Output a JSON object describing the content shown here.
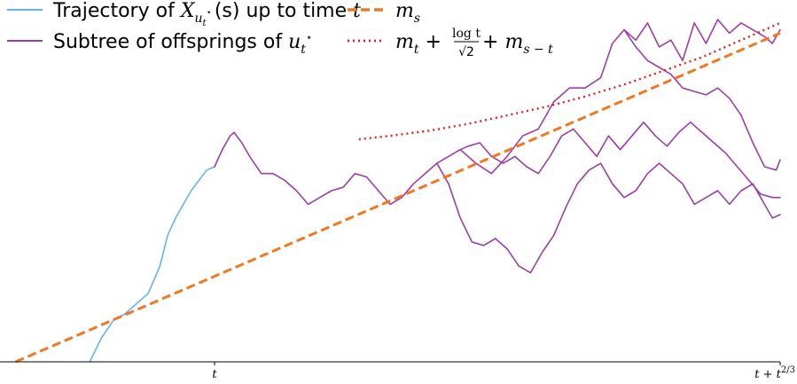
{
  "chart_data": {
    "type": "line",
    "title": "",
    "xlabel": "",
    "ylabel": "",
    "grid": false,
    "legend_placement": "top",
    "xlim": [
      0,
      1
    ],
    "ylim": [
      0,
      1
    ],
    "x_ticks": [
      {
        "key": "t",
        "value": 0.275,
        "label": "t"
      },
      {
        "key": "t_end",
        "value": 1.0,
        "label": "t + t^{2/3}"
      }
    ],
    "legend": [
      {
        "key": "trajectory",
        "label_parts": [
          "Trajectory of ",
          "X",
          "u",
          "t",
          "⋆",
          "(s)",
          " up to time ",
          "t"
        ],
        "color": "#66b2f0",
        "style": "solid"
      },
      {
        "key": "subtree",
        "label_parts": [
          "Subtree of offsprings of ",
          "u",
          "t",
          "⋆"
        ],
        "color": "#9b3ea8",
        "style": "solid"
      },
      {
        "key": "m_s",
        "label_parts": [
          "m",
          "s"
        ],
        "color": "#f07820",
        "style": "dashed"
      },
      {
        "key": "bound",
        "label_parts": [
          "m",
          "t",
          " + ",
          "log t",
          "√2",
          " + ",
          "m",
          "s − t"
        ],
        "color": "#e02020",
        "style": "dotted"
      }
    ],
    "colors": {
      "trajectory": "#66b2f0",
      "subtree": "#9b3ea8",
      "m_s": "#f07820",
      "bound": "#e02020"
    },
    "series": [
      {
        "key": "trajectory",
        "points": [
          [
            0.115,
            0.0
          ],
          [
            0.13,
            0.07
          ],
          [
            0.145,
            0.12
          ],
          [
            0.16,
            0.14
          ],
          [
            0.175,
            0.17
          ],
          [
            0.19,
            0.2
          ],
          [
            0.205,
            0.28
          ],
          [
            0.215,
            0.37
          ],
          [
            0.225,
            0.42
          ],
          [
            0.235,
            0.46
          ],
          [
            0.245,
            0.5
          ],
          [
            0.255,
            0.53
          ],
          [
            0.265,
            0.56
          ],
          [
            0.275,
            0.57
          ]
        ]
      },
      {
        "key": "trunk",
        "points": [
          [
            0.275,
            0.57
          ],
          [
            0.285,
            0.62
          ],
          [
            0.295,
            0.66
          ],
          [
            0.3,
            0.67
          ],
          [
            0.31,
            0.64
          ],
          [
            0.32,
            0.6
          ],
          [
            0.335,
            0.55
          ],
          [
            0.35,
            0.55
          ],
          [
            0.365,
            0.53
          ],
          [
            0.38,
            0.5
          ],
          [
            0.395,
            0.46
          ],
          [
            0.41,
            0.48
          ],
          [
            0.425,
            0.5
          ],
          [
            0.44,
            0.51
          ],
          [
            0.455,
            0.55
          ],
          [
            0.47,
            0.54
          ],
          [
            0.485,
            0.5
          ],
          [
            0.5,
            0.46
          ],
          [
            0.515,
            0.48
          ],
          [
            0.53,
            0.52
          ],
          [
            0.545,
            0.55
          ],
          [
            0.56,
            0.58
          ],
          [
            0.575,
            0.6
          ],
          [
            0.59,
            0.62
          ]
        ]
      },
      {
        "key": "subtree_a",
        "points": [
          [
            0.59,
            0.62
          ],
          [
            0.61,
            0.58
          ],
          [
            0.63,
            0.55
          ],
          [
            0.65,
            0.6
          ],
          [
            0.67,
            0.66
          ],
          [
            0.69,
            0.68
          ],
          [
            0.71,
            0.76
          ],
          [
            0.73,
            0.8
          ],
          [
            0.75,
            0.8
          ],
          [
            0.77,
            0.83
          ],
          [
            0.785,
            0.93
          ],
          [
            0.8,
            0.97
          ],
          [
            0.815,
            0.94
          ],
          [
            0.83,
            0.99
          ],
          [
            0.845,
            0.92
          ],
          [
            0.86,
            0.94
          ],
          [
            0.875,
            0.88
          ],
          [
            0.89,
            0.99
          ],
          [
            0.905,
            0.93
          ],
          [
            0.92,
            1.0
          ],
          [
            0.935,
            0.96
          ],
          [
            0.95,
            0.99
          ],
          [
            0.965,
            0.97
          ],
          [
            0.98,
            0.95
          ],
          [
            0.99,
            0.93
          ],
          [
            1.0,
            0.97
          ]
        ]
      },
      {
        "key": "subtree_b",
        "points": [
          [
            0.8,
            0.97
          ],
          [
            0.815,
            0.92
          ],
          [
            0.83,
            0.88
          ],
          [
            0.845,
            0.86
          ],
          [
            0.86,
            0.84
          ],
          [
            0.875,
            0.8
          ],
          [
            0.89,
            0.79
          ],
          [
            0.905,
            0.78
          ],
          [
            0.92,
            0.8
          ],
          [
            0.935,
            0.77
          ],
          [
            0.95,
            0.72
          ],
          [
            0.965,
            0.64
          ],
          [
            0.98,
            0.57
          ],
          [
            0.995,
            0.56
          ],
          [
            1.0,
            0.59
          ]
        ]
      },
      {
        "key": "subtree_c",
        "points": [
          [
            0.59,
            0.62
          ],
          [
            0.6,
            0.63
          ],
          [
            0.615,
            0.64
          ],
          [
            0.63,
            0.6
          ],
          [
            0.645,
            0.58
          ],
          [
            0.66,
            0.6
          ],
          [
            0.675,
            0.57
          ],
          [
            0.69,
            0.55
          ],
          [
            0.705,
            0.6
          ],
          [
            0.72,
            0.66
          ],
          [
            0.735,
            0.68
          ],
          [
            0.75,
            0.64
          ],
          [
            0.765,
            0.6
          ],
          [
            0.78,
            0.66
          ],
          [
            0.795,
            0.62
          ],
          [
            0.81,
            0.66
          ],
          [
            0.825,
            0.7
          ],
          [
            0.84,
            0.66
          ],
          [
            0.855,
            0.63
          ],
          [
            0.87,
            0.67
          ],
          [
            0.885,
            0.7
          ],
          [
            0.9,
            0.67
          ],
          [
            0.915,
            0.64
          ],
          [
            0.93,
            0.61
          ],
          [
            0.945,
            0.57
          ],
          [
            0.96,
            0.53
          ],
          [
            0.975,
            0.49
          ],
          [
            0.99,
            0.48
          ],
          [
            1.0,
            0.48
          ]
        ]
      },
      {
        "key": "subtree_d",
        "points": [
          [
            0.56,
            0.58
          ],
          [
            0.575,
            0.52
          ],
          [
            0.59,
            0.42
          ],
          [
            0.605,
            0.35
          ],
          [
            0.62,
            0.34
          ],
          [
            0.635,
            0.36
          ],
          [
            0.65,
            0.33
          ],
          [
            0.665,
            0.28
          ],
          [
            0.68,
            0.26
          ],
          [
            0.695,
            0.32
          ],
          [
            0.71,
            0.37
          ],
          [
            0.725,
            0.45
          ],
          [
            0.74,
            0.52
          ],
          [
            0.755,
            0.56
          ],
          [
            0.77,
            0.58
          ],
          [
            0.785,
            0.52
          ],
          [
            0.8,
            0.48
          ],
          [
            0.815,
            0.5
          ],
          [
            0.83,
            0.55
          ],
          [
            0.845,
            0.58
          ],
          [
            0.86,
            0.55
          ],
          [
            0.875,
            0.52
          ],
          [
            0.89,
            0.46
          ],
          [
            0.905,
            0.48
          ],
          [
            0.92,
            0.5
          ],
          [
            0.935,
            0.46
          ],
          [
            0.95,
            0.5
          ],
          [
            0.965,
            0.52
          ],
          [
            0.98,
            0.46
          ],
          [
            0.99,
            0.42
          ],
          [
            1.0,
            0.43
          ]
        ]
      },
      {
        "key": "m_s",
        "points": [
          [
            0.02,
            0.0
          ],
          [
            1.0,
            0.96
          ]
        ]
      },
      {
        "key": "bound",
        "points": [
          [
            0.46,
            0.65
          ],
          [
            0.5,
            0.66
          ],
          [
            0.55,
            0.675
          ],
          [
            0.6,
            0.695
          ],
          [
            0.65,
            0.72
          ],
          [
            0.7,
            0.745
          ],
          [
            0.75,
            0.775
          ],
          [
            0.8,
            0.81
          ],
          [
            0.85,
            0.85
          ],
          [
            0.9,
            0.89
          ],
          [
            0.95,
            0.94
          ],
          [
            1.0,
            0.99
          ]
        ]
      }
    ]
  }
}
